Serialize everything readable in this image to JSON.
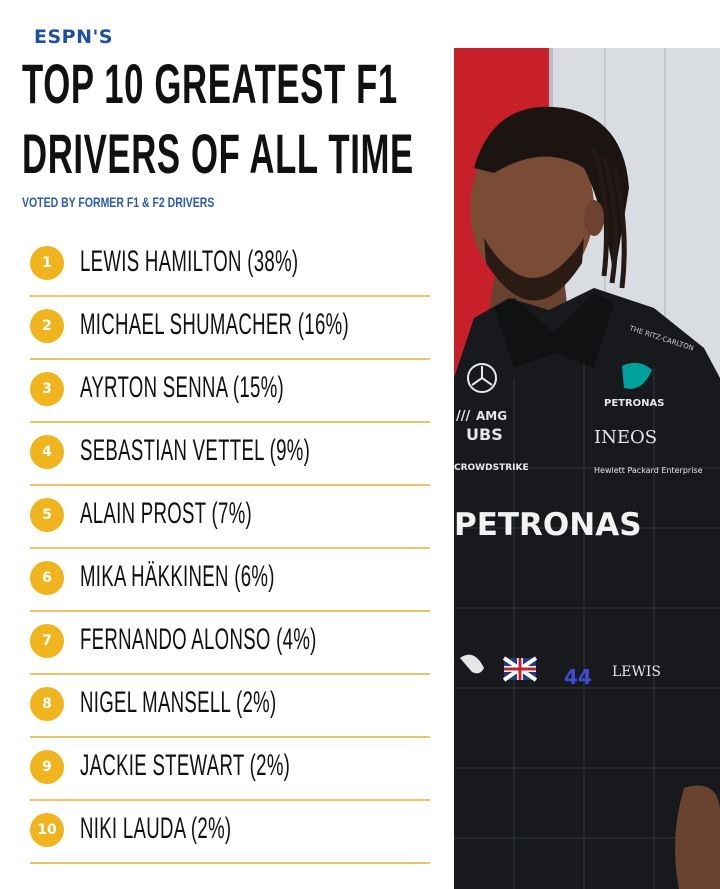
{
  "header": {
    "brand": "ESPN'S",
    "title_line1": "TOP 10 GREATEST F1",
    "title_line2": "DRIVERS OF ALL TIME",
    "subtitle": "VOTED BY FORMER F1 & F2 DRIVERS"
  },
  "rankings": [
    {
      "rank": "1",
      "name": "LEWIS HAMILTON (38%)"
    },
    {
      "rank": "2",
      "name": "MICHAEL SHUMACHER (16%)"
    },
    {
      "rank": "3",
      "name": "AYRTON SENNA (15%)"
    },
    {
      "rank": "4",
      "name": "SEBASTIAN VETTEL (9%)"
    },
    {
      "rank": "5",
      "name": "ALAIN PROST (7%)"
    },
    {
      "rank": "6",
      "name": "MIKA HÄKKINEN (6%)"
    },
    {
      "rank": "7",
      "name": "FERNANDO ALONSO (4%)"
    },
    {
      "rank": "8",
      "name": "NIGEL MANSELL (2%)"
    },
    {
      "rank": "9",
      "name": "JACKIE STEWART (2%)"
    },
    {
      "rank": "10",
      "name": "NIKI LAUDA (2%)"
    }
  ],
  "photo": {
    "suit_text_brand": "PETRONAS",
    "suit_text_ubs": "UBS",
    "suit_text_ineos": "INEOS",
    "suit_text_crowdstrike": "CROWDSTRIKE",
    "suit_text_hpe": "Hewlett Packard Enterprise",
    "suit_text_amg": "AMG",
    "suit_text_ritz": "THE RITZ-CARLTON",
    "suit_text_name": "LEWIS",
    "suit_text_number": "44"
  },
  "colors": {
    "badge": "#f0b41e",
    "divider": "#e9c46a",
    "brand_blue": "#1f4fa3"
  }
}
